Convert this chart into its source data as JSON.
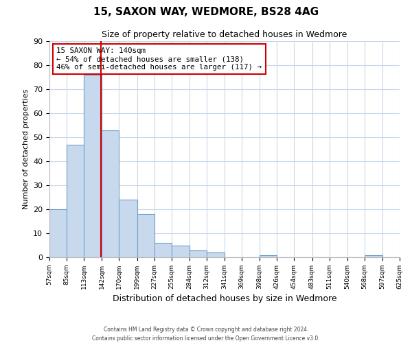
{
  "title": "15, SAXON WAY, WEDMORE, BS28 4AG",
  "subtitle": "Size of property relative to detached houses in Wedmore",
  "xlabel": "Distribution of detached houses by size in Wedmore",
  "ylabel": "Number of detached properties",
  "bar_color": "#c9d9ed",
  "bar_edge_color": "#6ea0cc",
  "background_color": "#ffffff",
  "grid_color": "#c8d8e8",
  "annotation_line_color": "#cc0000",
  "annotation_box_color": "#ffffff",
  "annotation_box_edge_color": "#cc0000",
  "annotation_title": "15 SAXON WAY: 140sqm",
  "annotation_line1": "← 54% of detached houses are smaller (138)",
  "annotation_line2": "46% of semi-detached houses are larger (117) →",
  "footer1": "Contains HM Land Registry data © Crown copyright and database right 2024.",
  "footer2": "Contains public sector information licensed under the Open Government Licence v3.0.",
  "ylim": [
    0,
    90
  ],
  "yticks": [
    0,
    10,
    20,
    30,
    40,
    50,
    60,
    70,
    80,
    90
  ],
  "bins": [
    57,
    85,
    113,
    142,
    170,
    199,
    227,
    255,
    284,
    312,
    341,
    369,
    398,
    426,
    454,
    483,
    511,
    540,
    568,
    597,
    625
  ],
  "counts": [
    20,
    47,
    76,
    53,
    24,
    18,
    6,
    5,
    3,
    2,
    0,
    0,
    1,
    0,
    0,
    0,
    0,
    0,
    1,
    0
  ],
  "property_size": 140,
  "figsize": [
    6.0,
    5.0
  ],
  "dpi": 100
}
